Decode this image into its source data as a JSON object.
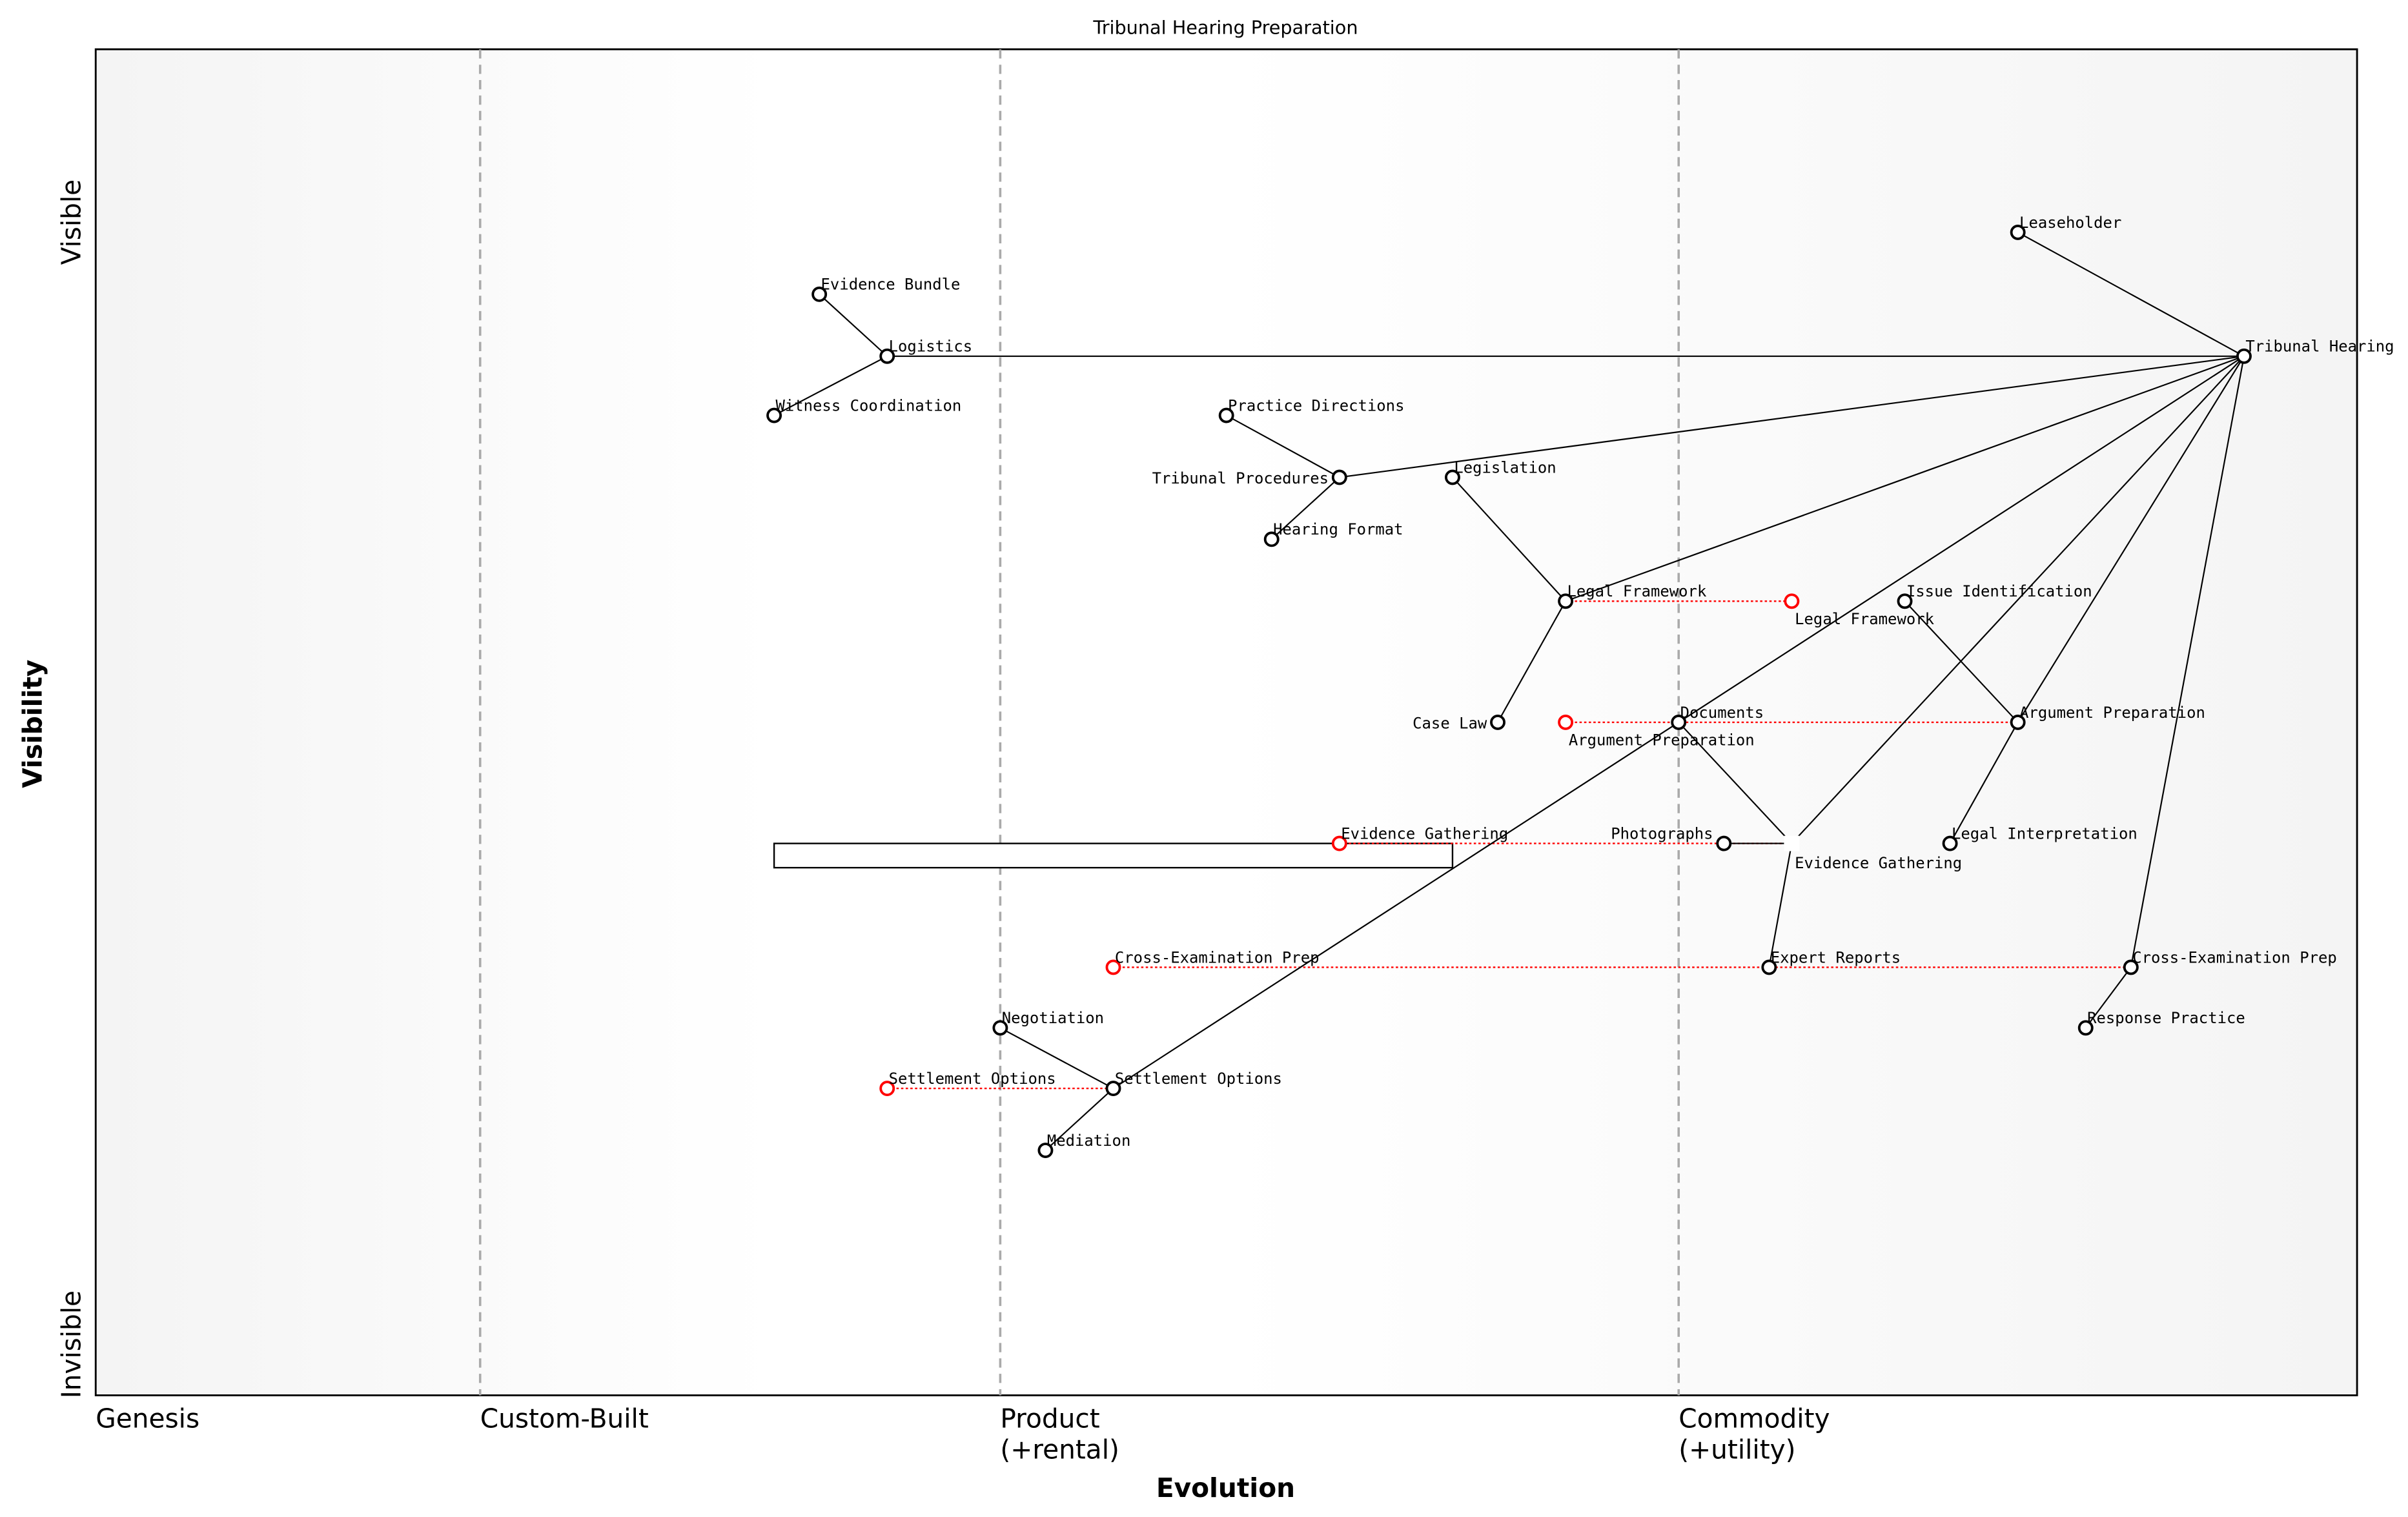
{
  "title": "Tribunal Hearing Preparation",
  "axes": {
    "xlabel": "Evolution",
    "ylabel": "Visibility",
    "y_top": "Visible",
    "y_bottom": "Invisible",
    "stages": [
      {
        "label": [
          "Genesis"
        ],
        "evolution": 0.0
      },
      {
        "label": [
          "Custom-Built"
        ],
        "evolution": 0.17
      },
      {
        "label": [
          "Product",
          "(+rental)"
        ],
        "evolution": 0.4
      },
      {
        "label": [
          "Commodity",
          "(+utility)"
        ],
        "evolution": 0.7
      }
    ]
  },
  "colors": {
    "node": "#000000",
    "evolved": "#ff0000",
    "stage_line": "#aaaaaa"
  },
  "components": [
    {
      "id": "leaseholder",
      "label": "Leaseholder",
      "evolution": 0.85,
      "visibility": 0.864
    },
    {
      "id": "tribunal_hearing",
      "label": "Tribunal Hearing",
      "evolution": 0.95,
      "visibility": 0.772
    },
    {
      "id": "logistics",
      "label": "Logistics",
      "evolution": 0.35,
      "visibility": 0.772
    },
    {
      "id": "evidence_bundle",
      "label": "Evidence Bundle",
      "evolution": 0.32,
      "visibility": 0.818
    },
    {
      "id": "witness_coordination",
      "label": "Witness Coordination",
      "evolution": 0.3,
      "visibility": 0.728
    },
    {
      "id": "practice_directions",
      "label": "Practice Directions",
      "evolution": 0.5,
      "visibility": 0.728
    },
    {
      "id": "tribunal_procedures",
      "label": "Tribunal Procedures",
      "evolution": 0.55,
      "visibility": 0.682
    },
    {
      "id": "legislation",
      "label": "Legislation",
      "evolution": 0.6,
      "visibility": 0.682
    },
    {
      "id": "hearing_format",
      "label": "Hearing Format",
      "evolution": 0.52,
      "visibility": 0.636
    },
    {
      "id": "legal_framework",
      "label": "Legal Framework",
      "evolution": 0.65,
      "visibility": 0.59
    },
    {
      "id": "legal_framework_evolved",
      "label": "Legal Framework",
      "evolution": 0.75,
      "visibility": 0.59,
      "evolved": true
    },
    {
      "id": "issue_identification",
      "label": "Issue Identification",
      "evolution": 0.8,
      "visibility": 0.59
    },
    {
      "id": "case_law",
      "label": "Case Law",
      "evolution": 0.62,
      "visibility": 0.5
    },
    {
      "id": "argument_preparation_evolved",
      "label": "Argument Preparation",
      "evolution": 0.65,
      "visibility": 0.5,
      "evolved": true
    },
    {
      "id": "documents",
      "label": "Documents",
      "evolution": 0.7,
      "visibility": 0.5
    },
    {
      "id": "argument_preparation",
      "label": "Argument Preparation",
      "evolution": 0.85,
      "visibility": 0.5
    },
    {
      "id": "evidence_gathering_evolved",
      "label": "Evidence Gathering",
      "evolution": 0.55,
      "visibility": 0.41,
      "evolved": true
    },
    {
      "id": "photographs",
      "label": "Photographs",
      "evolution": 0.72,
      "visibility": 0.41
    },
    {
      "id": "evidence_gathering",
      "label": "Evidence Gathering",
      "evolution": 0.75,
      "visibility": 0.41,
      "marker": "square"
    },
    {
      "id": "legal_interpretation",
      "label": "Legal Interpretation",
      "evolution": 0.82,
      "visibility": 0.41
    },
    {
      "id": "cross_exam_evolved",
      "label": "Cross-Examination Prep",
      "evolution": 0.45,
      "visibility": 0.318,
      "evolved": true
    },
    {
      "id": "expert_reports",
      "label": "Expert Reports",
      "evolution": 0.74,
      "visibility": 0.318
    },
    {
      "id": "cross_exam",
      "label": "Cross-Examination Prep",
      "evolution": 0.9,
      "visibility": 0.318
    },
    {
      "id": "response_practice",
      "label": "Response Practice",
      "evolution": 0.88,
      "visibility": 0.273
    },
    {
      "id": "negotiation",
      "label": "Negotiation",
      "evolution": 0.4,
      "visibility": 0.273
    },
    {
      "id": "settlement_evolved",
      "label": "Settlement Options",
      "evolution": 0.35,
      "visibility": 0.228,
      "evolved": true
    },
    {
      "id": "settlement",
      "label": "Settlement Options",
      "evolution": 0.45,
      "visibility": 0.228
    },
    {
      "id": "mediation",
      "label": "Mediation",
      "evolution": 0.42,
      "visibility": 0.182
    }
  ],
  "links": [
    [
      "leaseholder",
      "tribunal_hearing"
    ],
    [
      "tribunal_hearing",
      "logistics"
    ],
    [
      "logistics",
      "evidence_bundle"
    ],
    [
      "logistics",
      "witness_coordination"
    ],
    [
      "tribunal_hearing",
      "tribunal_procedures"
    ],
    [
      "tribunal_procedures",
      "practice_directions"
    ],
    [
      "tribunal_procedures",
      "hearing_format"
    ],
    [
      "tribunal_hearing",
      "legal_framework"
    ],
    [
      "legislation",
      "legal_framework"
    ],
    [
      "legal_framework",
      "case_law"
    ],
    [
      "tribunal_hearing",
      "documents"
    ],
    [
      "documents",
      "settlement"
    ],
    [
      "documents",
      "evidence_gathering"
    ],
    [
      "tribunal_hearing",
      "evidence_gathering"
    ],
    [
      "photographs",
      "evidence_gathering"
    ],
    [
      "evidence_gathering",
      "expert_reports"
    ],
    [
      "tribunal_hearing",
      "argument_preparation"
    ],
    [
      "issue_identification",
      "argument_preparation"
    ],
    [
      "argument_preparation",
      "legal_interpretation"
    ],
    [
      "tribunal_hearing",
      "cross_exam"
    ],
    [
      "cross_exam",
      "response_practice"
    ],
    [
      "settlement",
      "negotiation"
    ],
    [
      "settlement",
      "mediation"
    ]
  ],
  "evolutions": [
    [
      "legal_framework",
      "legal_framework_evolved"
    ],
    [
      "argument_preparation_evolved",
      "argument_preparation"
    ],
    [
      "evidence_gathering_evolved",
      "evidence_gathering"
    ],
    [
      "cross_exam_evolved",
      "cross_exam"
    ],
    [
      "settlement_evolved",
      "settlement"
    ]
  ],
  "pipelines": [
    {
      "evolution_start": 0.3,
      "evolution_end": 0.6,
      "visibility_top": 0.41,
      "visibility_bottom": 0.392
    }
  ]
}
